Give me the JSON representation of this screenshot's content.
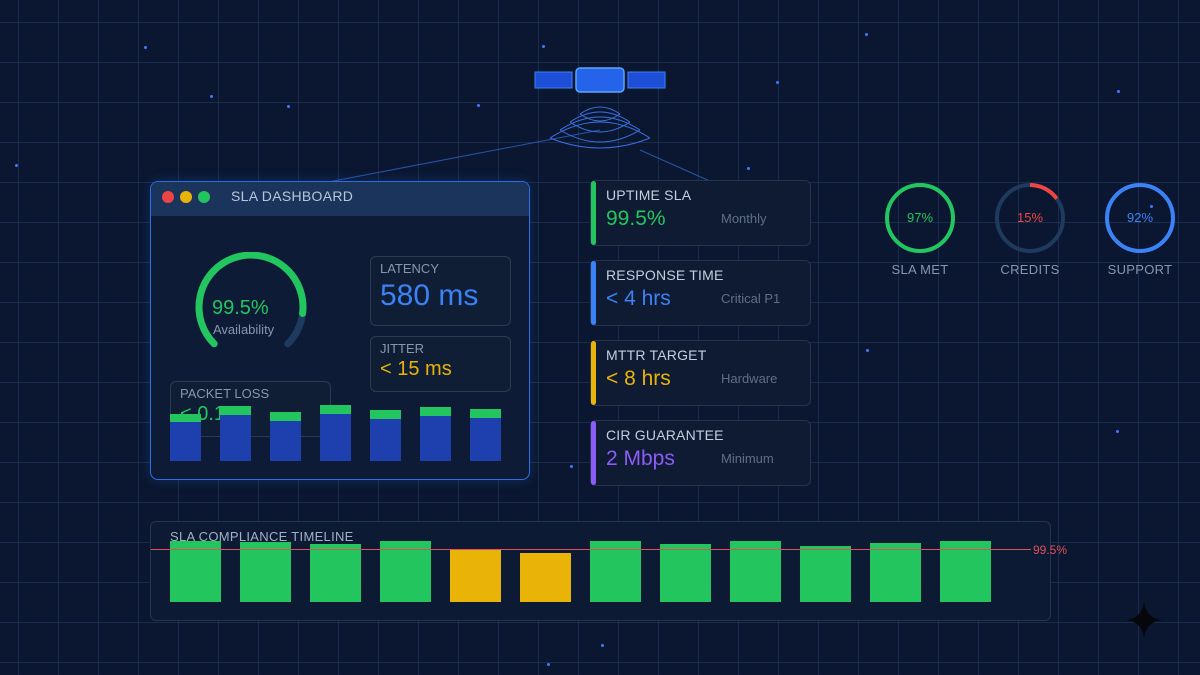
{
  "colors": {
    "green": "#22c55e",
    "blue": "#3b82f6",
    "amber": "#eab308",
    "purple": "#8b5cf6",
    "red": "#ef4444",
    "panel_border": "#2b6fe0"
  },
  "dashboard": {
    "title": "SLA DASHBOARD",
    "availability": {
      "value": "99.5%",
      "label": "Availability",
      "fraction": 0.86
    },
    "latency": {
      "label": "LATENCY",
      "value": "580 ms"
    },
    "jitter": {
      "label": "JITTER",
      "value": "< 15 ms"
    },
    "packet_loss": {
      "label": "PACKET LOSS",
      "value": "< 0.1%"
    },
    "bars": [
      {
        "total": 47,
        "top": 8
      },
      {
        "total": 55,
        "top": 9
      },
      {
        "total": 49,
        "top": 9
      },
      {
        "total": 56,
        "top": 9
      },
      {
        "total": 51,
        "top": 9
      },
      {
        "total": 54,
        "top": 9
      },
      {
        "total": 52,
        "top": 9
      }
    ]
  },
  "cards": [
    {
      "title": "UPTIME SLA",
      "value": "99.5%",
      "sub": "Monthly",
      "accent": "#22c55e",
      "value_color": "#22c55e"
    },
    {
      "title": "RESPONSE TIME",
      "value": "< 4 hrs",
      "sub": "Critical P1",
      "accent": "#3b82f6",
      "value_color": "#3b82f6"
    },
    {
      "title": "MTTR TARGET",
      "value": "< 8 hrs",
      "sub": "Hardware",
      "accent": "#eab308",
      "value_color": "#eab308"
    },
    {
      "title": "CIR GUARANTEE",
      "value": "2 Mbps",
      "sub": "Minimum",
      "accent": "#8b5cf6",
      "value_color": "#8b5cf6"
    }
  ],
  "rings": [
    {
      "pct": "97%",
      "label": "SLA MET",
      "fraction": 0.97,
      "color": "#22c55e",
      "arc": "full"
    },
    {
      "pct": "15%",
      "label": "CREDITS",
      "fraction": 0.15,
      "color": "#ef4444",
      "arc": "partial"
    },
    {
      "pct": "92%",
      "label": "SUPPORT",
      "fraction": 0.92,
      "color": "#3b82f6",
      "arc": "full"
    }
  ],
  "timeline": {
    "title": "SLA COMPLIANCE TIMELINE",
    "target_label": "99.5%",
    "bars": [
      {
        "height": 61,
        "color": "#22c55e"
      },
      {
        "height": 60,
        "color": "#22c55e"
      },
      {
        "height": 58,
        "color": "#22c55e"
      },
      {
        "height": 61,
        "color": "#22c55e"
      },
      {
        "height": 53,
        "color": "#eab308"
      },
      {
        "height": 49,
        "color": "#eab308"
      },
      {
        "height": 61,
        "color": "#22c55e"
      },
      {
        "height": 58,
        "color": "#22c55e"
      },
      {
        "height": 61,
        "color": "#22c55e"
      },
      {
        "height": 56,
        "color": "#22c55e"
      },
      {
        "height": 59,
        "color": "#22c55e"
      },
      {
        "height": 61,
        "color": "#22c55e"
      }
    ]
  }
}
